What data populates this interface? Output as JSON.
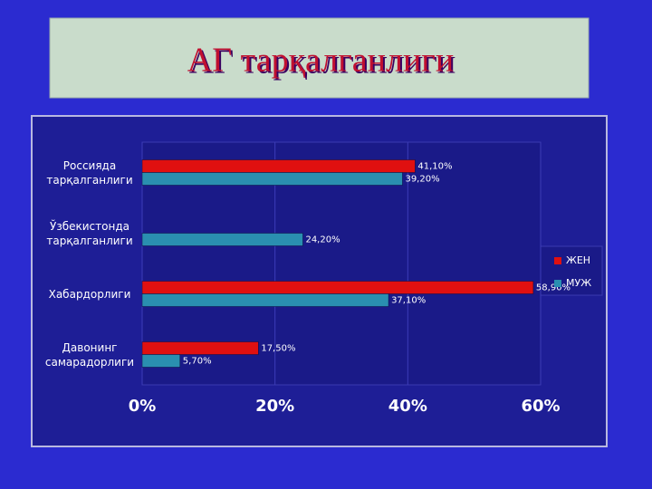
{
  "title": "АГ тарқалганлиги",
  "chart_data": {
    "type": "hbar",
    "categories": [
      "Россияда тарқалганлиги",
      "Ўзбекистонда тарқалганлиги",
      "Хабардорлиги",
      "Давонинг самарадорлиги"
    ],
    "series": [
      {
        "name": "ЖЕН",
        "color": "#e01010",
        "values": [
          41.1,
          null,
          58.9,
          17.5
        ],
        "value_labels": [
          "41,10%",
          null,
          "58,90%",
          "17,50%"
        ]
      },
      {
        "name": "МУЖ",
        "color": "#2a8fb0",
        "values": [
          39.2,
          24.2,
          37.1,
          5.7
        ],
        "value_labels": [
          "39,20%",
          "24,20%",
          "37,10%",
          "5,70%"
        ]
      }
    ],
    "xlim": [
      0,
      60
    ],
    "xticks": [
      {
        "value": 0,
        "label": "0%"
      },
      {
        "value": 20,
        "label": "20%"
      },
      {
        "value": 40,
        "label": "40%"
      },
      {
        "value": 60,
        "label": "60%"
      }
    ],
    "grid": true,
    "legend": "right"
  }
}
